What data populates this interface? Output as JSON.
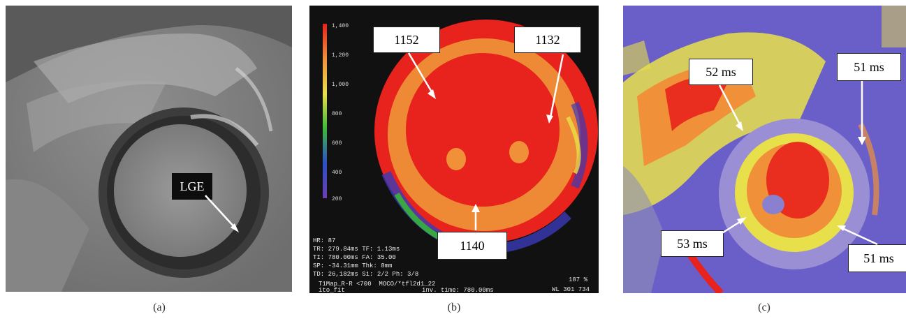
{
  "panels": [
    {
      "caption": "(a)",
      "labels": [
        "LGE"
      ]
    },
    {
      "caption": "(b)",
      "labels": [
        "1152",
        "1132",
        "1140"
      ],
      "scale_ticks": [
        "1,400",
        "1,200",
        "1,000",
        "800",
        "600",
        "400",
        "200"
      ],
      "overlay_left": [
        "HR: 87",
        "TR: 279.84ms TF: 1.13ms",
        "TI: 780.00ms FA: 35.00",
        "SP: -34.31mm Thk: 8mm",
        "TD: 26,182ms Si: 2/2 Ph: 3/8"
      ],
      "overlay_bottom_left": [
        "T1Map_R-R <700  MOCO/*tfl2d1_22",
        "ito_fit"
      ],
      "overlay_bottom_mid": "inv. time: 780.00ms",
      "overlay_right": [
        "187 %",
        "WL 301 734"
      ]
    },
    {
      "caption": "(c)",
      "labels": [
        "52 ms",
        "51 ms",
        "53 ms",
        "51 ms"
      ]
    }
  ],
  "colors": {
    "red": "#e8221c",
    "orange": "#f0913a",
    "yellow": "#e8e04a",
    "purple": "#6a5fc8",
    "gray": "#9c9c9c"
  }
}
